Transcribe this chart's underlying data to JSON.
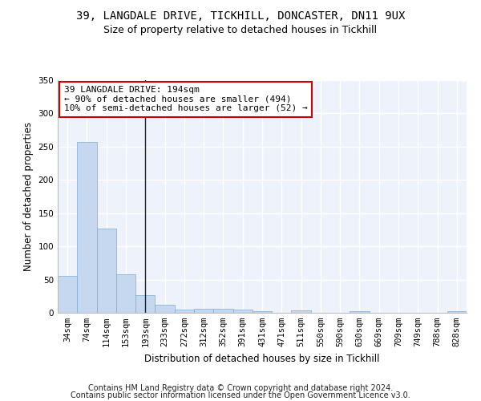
{
  "title1": "39, LANGDALE DRIVE, TICKHILL, DONCASTER, DN11 9UX",
  "title2": "Size of property relative to detached houses in Tickhill",
  "xlabel": "Distribution of detached houses by size in Tickhill",
  "ylabel": "Number of detached properties",
  "categories": [
    "34sqm",
    "74sqm",
    "114sqm",
    "153sqm",
    "193sqm",
    "233sqm",
    "272sqm",
    "312sqm",
    "352sqm",
    "391sqm",
    "431sqm",
    "471sqm",
    "511sqm",
    "550sqm",
    "590sqm",
    "630sqm",
    "669sqm",
    "709sqm",
    "749sqm",
    "788sqm",
    "828sqm"
  ],
  "values": [
    55,
    257,
    127,
    58,
    26,
    12,
    5,
    6,
    6,
    5,
    3,
    0,
    4,
    0,
    0,
    3,
    0,
    0,
    0,
    0,
    3
  ],
  "bar_color": "#c5d8f0",
  "bar_edge_color": "#7aadd4",
  "vline_x_index": 4,
  "annotation_line1": "39 LANGDALE DRIVE: 194sqm",
  "annotation_line2": "← 90% of detached houses are smaller (494)",
  "annotation_line3": "10% of semi-detached houses are larger (52) →",
  "annotation_box_color": "#ffffff",
  "annotation_box_edge_color": "#cc0000",
  "ylim": [
    0,
    350
  ],
  "yticks": [
    0,
    50,
    100,
    150,
    200,
    250,
    300,
    350
  ],
  "footnote1": "Contains HM Land Registry data © Crown copyright and database right 2024.",
  "footnote2": "Contains public sector information licensed under the Open Government Licence v3.0.",
  "bg_color": "#eef2fb",
  "grid_color": "#ffffff",
  "title1_fontsize": 10,
  "title2_fontsize": 9,
  "xlabel_fontsize": 8.5,
  "ylabel_fontsize": 8.5,
  "tick_fontsize": 7.5,
  "annotation_fontsize": 8,
  "footnote_fontsize": 7
}
